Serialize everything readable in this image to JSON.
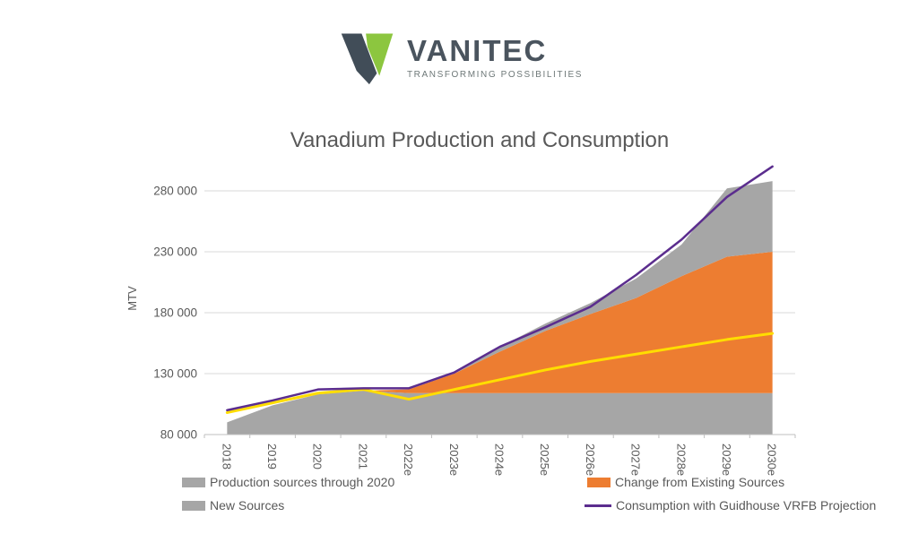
{
  "logo": {
    "name": "VANITEC",
    "tagline": "TRANSFORMING POSSIBILITIES",
    "mark_colors": {
      "dark": "#414D58",
      "green": "#8CC63F"
    }
  },
  "chart_data": {
    "type": "area",
    "title": "Vanadium Production and Consumption",
    "ylabel": "MTV",
    "xlabel": "",
    "grid": true,
    "legend_position": "bottom",
    "ylim": [
      80000,
      280000
    ],
    "yticks": [
      80000,
      130000,
      180000,
      230000,
      280000
    ],
    "ytick_labels": [
      "80 000",
      "130 000",
      "180 000",
      "230 000",
      "280 000"
    ],
    "categories": [
      "2018",
      "2019",
      "2020",
      "2021",
      "2022e",
      "2023e",
      "2024e",
      "2025e",
      "2026e",
      "2027e",
      "2028e",
      "2029e",
      "2030e"
    ],
    "stacked_series": [
      {
        "name": "Production sources through 2020",
        "color": "#A6A6A6",
        "values": [
          90000,
          104000,
          113000,
          116000,
          114000,
          114000,
          114000,
          114000,
          114000,
          114000,
          114000,
          114000,
          114000
        ]
      },
      {
        "name": "Change from Existing Sources",
        "color": "#ED7D31",
        "values": [
          0,
          0,
          0,
          0,
          3000,
          16000,
          34000,
          51000,
          65000,
          78000,
          96000,
          112000,
          116000
        ]
      },
      {
        "name": "New Sources",
        "color": "#A6A6A6",
        "values": [
          0,
          0,
          0,
          0,
          0,
          0,
          4000,
          6000,
          9000,
          16000,
          26000,
          56000,
          58000
        ]
      }
    ],
    "line_series": [
      {
        "name": "unlabeled yellow line",
        "color": "#FFDD00",
        "width": 3,
        "values": [
          98000,
          106000,
          114000,
          117000,
          109000,
          117000,
          125000,
          133000,
          140000,
          146000,
          152000,
          158000,
          163000
        ]
      },
      {
        "name": "Consumption with Guidhouse VRFB Projection",
        "color": "#5B2D8E",
        "width": 2.5,
        "values": [
          100000,
          108000,
          117000,
          118000,
          118000,
          131000,
          152000,
          168000,
          185000,
          211000,
          240000,
          275000,
          300000
        ]
      }
    ],
    "legend": [
      {
        "label": "Production sources through 2020",
        "color": "#A6A6A6",
        "type": "area"
      },
      {
        "label": "New Sources",
        "color": "#A6A6A6",
        "type": "area"
      },
      {
        "label": "Change from Existing Sources",
        "color": "#ED7D31",
        "type": "area"
      },
      {
        "label": "Consumption with Guidhouse VRFB Projection",
        "color": "#5B2D8E",
        "type": "line"
      }
    ],
    "colors": {
      "grid": "#D9D9D9",
      "axis": "#BFBFBF",
      "text": "#595959"
    }
  }
}
